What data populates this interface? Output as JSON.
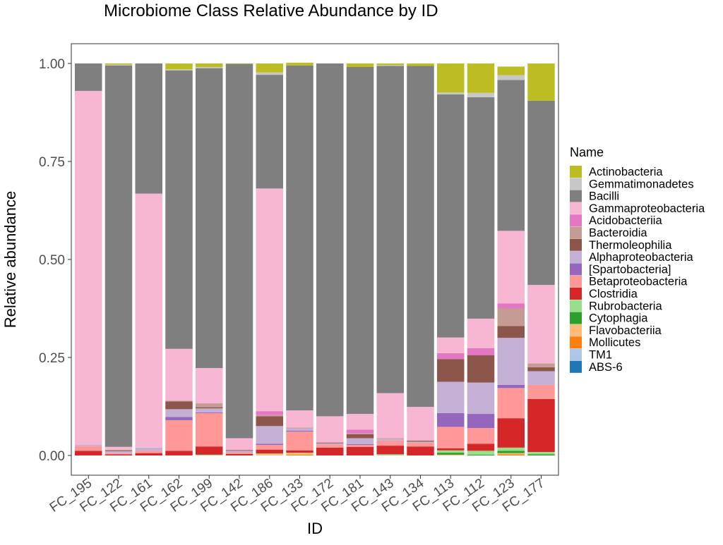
{
  "chart_data": {
    "type": "bar",
    "stacked": true,
    "title": "Microbiome Class Relative Abundance by ID",
    "xlabel": "ID",
    "ylabel": "Relative abundance",
    "ylim": [
      0,
      1
    ],
    "yticks": [
      "0.00",
      "0.25",
      "0.50",
      "0.75",
      "1.00"
    ],
    "grid": false,
    "legend": {
      "title": "Name",
      "position": "right"
    },
    "categories": [
      "FC_195",
      "FC_122",
      "FC_161",
      "FC_162",
      "FC_199",
      "FC_142",
      "FC_186",
      "FC_133",
      "FC_172",
      "FC_181",
      "FC_143",
      "FC_134",
      "FC_113",
      "FC_112",
      "FC_123",
      "FC_177"
    ],
    "series": [
      {
        "name": "ABS-6",
        "color": "#1f77b4",
        "values": [
          0,
          0,
          0,
          0,
          0,
          0,
          0,
          0,
          0,
          0,
          0,
          0,
          0,
          0,
          0,
          0
        ]
      },
      {
        "name": "TM1",
        "color": "#aec7e8",
        "values": [
          0,
          0,
          0,
          0,
          0,
          0,
          0,
          0,
          0,
          0,
          0,
          0,
          0,
          0,
          0,
          0
        ]
      },
      {
        "name": "Mollicutes",
        "color": "#ff7f0e",
        "values": [
          0,
          0,
          0,
          0,
          0,
          0,
          0,
          0.002,
          0,
          0,
          0,
          0,
          0,
          0,
          0.003,
          0
        ]
      },
      {
        "name": "Flavobacteriia",
        "color": "#ffbb78",
        "values": [
          0,
          0,
          0,
          0,
          0,
          0,
          0.003,
          0.005,
          0,
          0,
          0,
          0,
          0.002,
          0,
          0.003,
          0
        ]
      },
      {
        "name": "Cytophagia",
        "color": "#2ca02c",
        "values": [
          0,
          0,
          0,
          0,
          0,
          0,
          0,
          0,
          0,
          0,
          0,
          0,
          0.005,
          0.002,
          0.006,
          0.003
        ]
      },
      {
        "name": "Rubrobacteria",
        "color": "#98df8a",
        "values": [
          0,
          0,
          0,
          0,
          0.002,
          0,
          0.002,
          0,
          0,
          0,
          0.003,
          0,
          0.006,
          0.01,
          0.008,
          0.006
        ]
      },
      {
        "name": "Clostridia",
        "color": "#d62728",
        "values": [
          0.012,
          0.003,
          0.006,
          0.012,
          0.021,
          0.004,
          0.01,
          0.006,
          0.02,
          0.022,
          0.022,
          0.023,
          0.005,
          0.018,
          0.075,
          0.135
        ]
      },
      {
        "name": "Betaproteobacteria",
        "color": "#ff9896",
        "values": [
          0.012,
          0.003,
          0.006,
          0.078,
          0.085,
          0.004,
          0.012,
          0.048,
          0.008,
          0.005,
          0.013,
          0.01,
          0.055,
          0.04,
          0.077,
          0.036
        ]
      },
      {
        "name": "[Spartobacteria]",
        "color": "#9467bd",
        "values": [
          0,
          0,
          0,
          0.008,
          0.002,
          0,
          0.003,
          0.002,
          0,
          0.002,
          0,
          0,
          0.035,
          0.036,
          0.008,
          0
        ]
      },
      {
        "name": "Alphaproteobacteria",
        "color": "#c5b0d5",
        "values": [
          0.003,
          0.005,
          0.008,
          0.02,
          0.01,
          0.004,
          0.045,
          0.006,
          0.003,
          0.015,
          0.004,
          0.002,
          0.08,
          0.08,
          0.12,
          0.035
        ]
      },
      {
        "name": "Thermoleophilia",
        "color": "#8c564b",
        "values": [
          0,
          0.002,
          0,
          0.02,
          0.003,
          0.002,
          0.025,
          0,
          0.002,
          0.01,
          0,
          0.002,
          0.058,
          0.07,
          0.03,
          0.01
        ]
      },
      {
        "name": "Bacteroidia",
        "color": "#c49c94",
        "values": [
          0,
          0.002,
          0,
          0.002,
          0.01,
          0,
          0.003,
          0.002,
          0,
          0.002,
          0.002,
          0.002,
          0,
          0,
          0.045,
          0.01
        ]
      },
      {
        "name": "Acidobacteriia",
        "color": "#e377c2",
        "values": [
          0,
          0,
          0,
          0,
          0,
          0,
          0.01,
          0,
          0,
          0.01,
          0,
          0,
          0.015,
          0.018,
          0.013,
          0
        ]
      },
      {
        "name": "Gammaproteobacteria",
        "color": "#f7b6d2",
        "values": [
          0.903,
          0.007,
          0.648,
          0.132,
          0.09,
          0.03,
          0.568,
          0.044,
          0.067,
          0.04,
          0.115,
          0.085,
          0.04,
          0.075,
          0.185,
          0.2
        ]
      },
      {
        "name": "Bacilli",
        "color": "#7f7f7f",
        "values": [
          0.07,
          0.973,
          0.332,
          0.71,
          0.765,
          0.955,
          0.29,
          0.88,
          0.9,
          0.885,
          0.835,
          0.87,
          0.62,
          0.565,
          0.385,
          0.47
        ]
      },
      {
        "name": "Gemmatimonadetes",
        "color": "#c7c7c7",
        "values": [
          0,
          0.002,
          0,
          0.003,
          0.003,
          0,
          0.006,
          0,
          0,
          0,
          0.002,
          0,
          0.005,
          0.011,
          0.012,
          0
        ]
      },
      {
        "name": "Actinobacteria",
        "color": "#bcbd22",
        "values": [
          0,
          0.003,
          0,
          0.015,
          0.009,
          0.001,
          0.023,
          0.007,
          0,
          0.009,
          0.004,
          0.006,
          0.074,
          0.075,
          0.022,
          0.095
        ]
      }
    ]
  }
}
